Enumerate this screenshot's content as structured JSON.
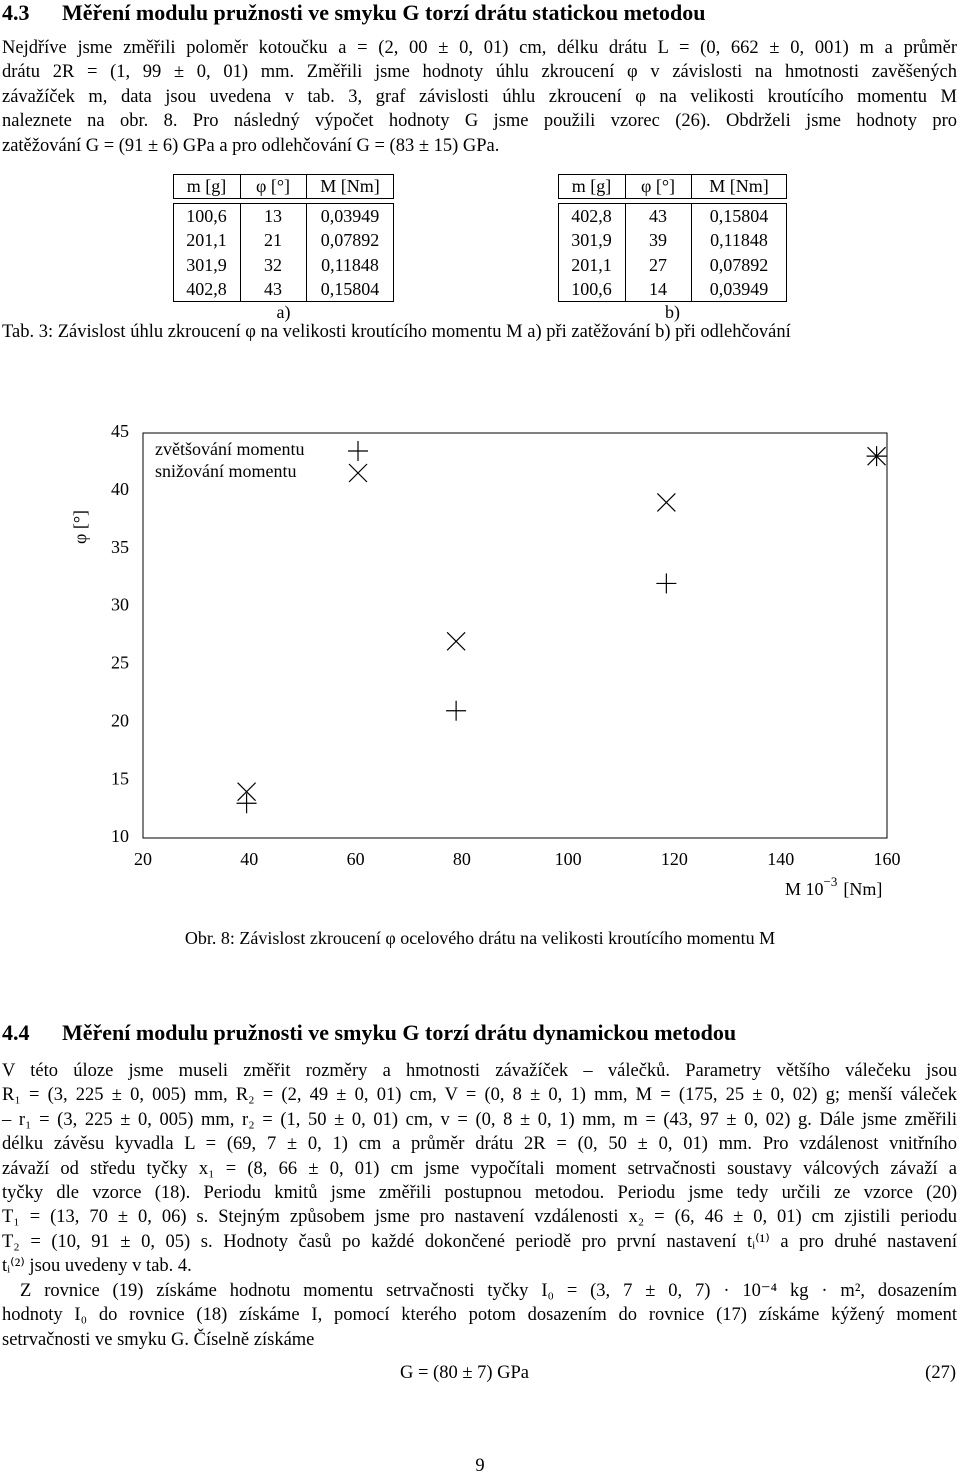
{
  "section_43": {
    "number": "4.3",
    "title": "Měření modulu pružnosti ve smyku G torzí drátu statickou metodou"
  },
  "paragraph_1": {
    "lines": [
      "Nejdříve jsme změřili poloměr kotoučku a = (2, 00 ± 0, 01) cm, délku drátu L = (0, 662 ± 0, 001) m a průměr",
      "drátu 2R = (1, 99 ± 0, 01) mm. Změřili jsme hodnoty úhlu zkroucení φ v závislosti na hmotnosti zavěšených",
      "závažíček m, data jsou uvedena v tab. 3, graf závislosti úhlu zkroucení φ na velikosti kroutícího momentu M",
      "naleznete na obr. 8. Pro následný výpočet hodnoty G jsme použili vzorec (26). Obdrželi jsme hodnoty pro",
      "zatěžování G = (91 ± 6) GPa a pro odlehčování G = (83 ± 15) GPa."
    ]
  },
  "table_a": {
    "header": [
      "m [g]",
      "φ [°]",
      "M [Nm]"
    ],
    "rows": [
      [
        "100,6",
        "13",
        "0,03949"
      ],
      [
        "201,1",
        "21",
        "0,07892"
      ],
      [
        "301,9",
        "32",
        "0,11848"
      ],
      [
        "402,8",
        "43",
        "0,15804"
      ]
    ],
    "label": "a)"
  },
  "table_b": {
    "header": [
      "m [g]",
      "φ [°]",
      "M [Nm]"
    ],
    "rows": [
      [
        "402,8",
        "43",
        "0,15804"
      ],
      [
        "301,9",
        "39",
        "0,11848"
      ],
      [
        "201,1",
        "27",
        "0,07892"
      ],
      [
        "100,6",
        "14",
        "0,03949"
      ]
    ],
    "label": "b)"
  },
  "table_caption": "Tab. 3: Závislost úhlu zkroucení φ na velikosti kroutícího momentu M a) při zatěžování b) při odlehčování",
  "chart_data": {
    "type": "scatter",
    "xlabel": [
      "M 10",
      "−3",
      "[Nm]"
    ],
    "ylabel": "φ [°]",
    "xlim": [
      20,
      160
    ],
    "ylim": [
      10,
      45
    ],
    "xticks": [
      20,
      40,
      60,
      80,
      100,
      120,
      140,
      160
    ],
    "yticks": [
      10,
      15,
      20,
      25,
      30,
      35,
      40,
      45
    ],
    "legend": "top-left",
    "series": [
      {
        "name": "zvětšování momentu",
        "marker": "plus",
        "color": "#000000",
        "x": [
          39.49,
          78.92,
          118.48,
          158.04
        ],
        "values": [
          13,
          21,
          32,
          43
        ]
      },
      {
        "name": "snižování momentu",
        "marker": "cross",
        "color": "#000000",
        "x": [
          158.04,
          118.48,
          78.92,
          39.49
        ],
        "values": [
          43,
          39,
          27,
          14
        ]
      }
    ],
    "caption": "Obr. 8: Závislost zkroucení φ ocelového drátu na velikosti kroutícího momentu M"
  },
  "section_44": {
    "number": "4.4",
    "title": "Měření modulu pružnosti ve smyku G torzí drátu dynamickou metodou"
  },
  "paragraph_2": {
    "lines": [
      "V této úloze jsme museli změřit rozměry a hmotnosti závažíček – válečků. Parametry většího válečeku jsou",
      "R₁ = (3, 225 ± 0, 005) mm, R₂ = (2, 49 ± 0, 01) cm, V = (0, 8 ± 0, 1) mm, M = (175, 25 ± 0, 02) g; menší váleček",
      "– r₁ = (3, 225 ± 0, 005) mm, r₂ = (1, 50 ± 0, 01) cm, v = (0, 8 ± 0, 1) mm, m = (43, 97 ± 0, 02) g. Dále jsme změřili",
      "délku závěsu kyvadla L = (69, 7 ± 0, 1) cm a průměr drátu 2R = (0, 50 ± 0, 01) mm. Pro vzdálenost vnitřního",
      "závaží od středu tyčky x₁ = (8, 66 ± 0, 01) cm jsme vypočítali moment setrvačnosti soustavy válcových závaží a",
      "tyčky dle vzorce (18). Periodu kmitů jsme změřili postupnou metodou. Periodu jsme tedy určili ze vzorce (20)",
      "T₁ = (13, 70 ± 0, 06) s. Stejným způsobem jsme pro nastavení vzdálenosti x₂ = (6, 46 ± 0, 01) cm zjistili periodu",
      "T₂ = (10, 91 ± 0, 05) s. Hodnoty časů po každé dokončené periodě pro první nastavení tᵢ⁽¹⁾ a pro druhé nastavení",
      "tᵢ⁽²⁾ jsou uvedeny v tab. 4."
    ]
  },
  "paragraph_3": {
    "lines": [
      "Z rovnice (19) získáme hodnotu momentu setrvačnosti tyčky I₀ = (3, 7 ± 0, 7) · 10⁻⁴ kg · m², dosazením",
      "hodnoty I₀ do rovnice (18) získáme I, pomocí kterého potom dosazením do rovnice (17) získáme kýžený moment",
      "setrvačnosti ve smyku G. Číselně získáme"
    ]
  },
  "equation": {
    "formula": "G = (80 ± 7) GPa",
    "number": "(27)"
  },
  "page_number": "9"
}
